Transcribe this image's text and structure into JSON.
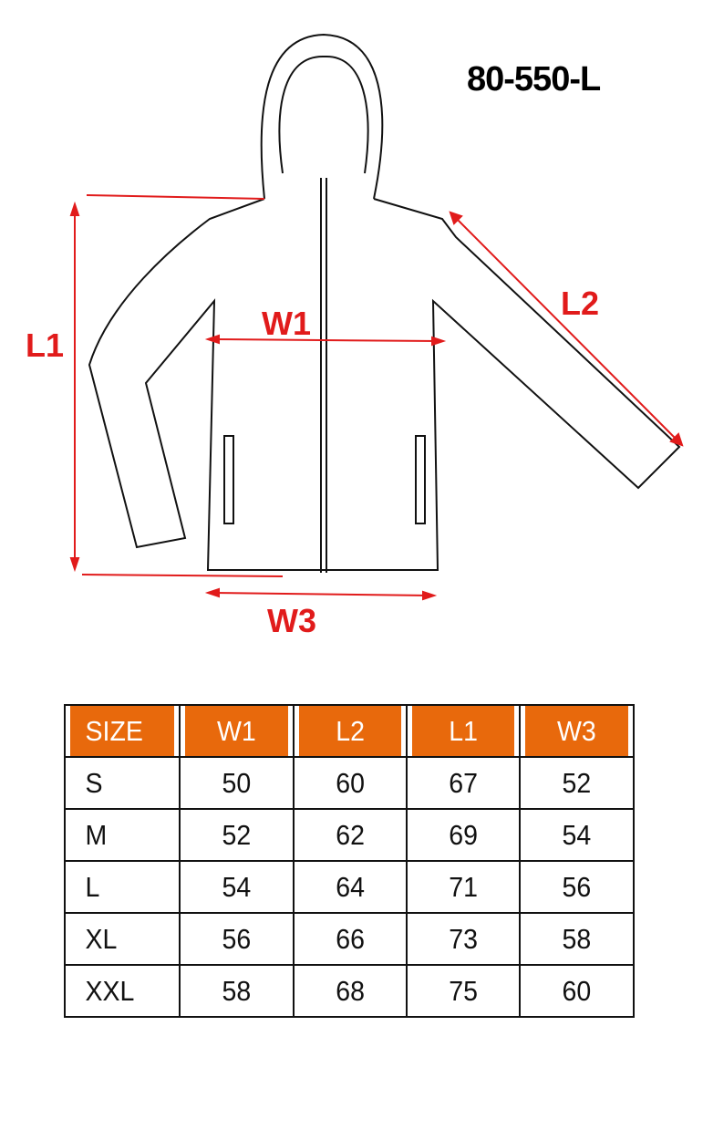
{
  "product_code": "80-550-L",
  "labels": {
    "l1": "L1",
    "l2": "L2",
    "w1": "W1",
    "w3": "W3"
  },
  "colors": {
    "header_bg": "#e8690c",
    "measure": "#e11b1b"
  },
  "table": {
    "headers": [
      "SIZE",
      "W1",
      "L2",
      "L1",
      "W3"
    ],
    "rows": [
      [
        "S",
        "50",
        "60",
        "67",
        "52"
      ],
      [
        "M",
        "52",
        "62",
        "69",
        "54"
      ],
      [
        "L",
        "54",
        "64",
        "71",
        "56"
      ],
      [
        "XL",
        "56",
        "66",
        "73",
        "58"
      ],
      [
        "XXL",
        "58",
        "68",
        "75",
        "60"
      ]
    ]
  }
}
